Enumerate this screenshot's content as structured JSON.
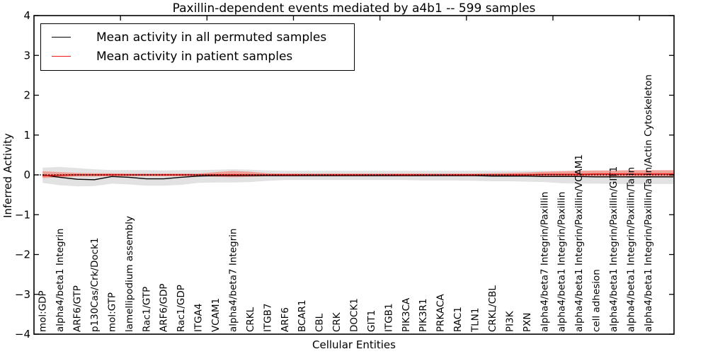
{
  "figure": {
    "title": "Paxillin-dependent events mediated by a4b1 -- 599 samples"
  },
  "chart_data": {
    "type": "line",
    "title": "Paxillin-dependent events mediated by a4b1 -- 599 samples",
    "xlabel": "Cellular Entities",
    "ylabel": "Inferred Activity",
    "ylim": [
      -4,
      4
    ],
    "yticks": [
      "4",
      "3",
      "2",
      "1",
      "0",
      "−1",
      "−2",
      "−3",
      "−4"
    ],
    "grid": false,
    "legend_position": "upper left",
    "legend": [
      {
        "label": "Mean activity in all permuted samples",
        "color": "#000000"
      },
      {
        "label": "Mean activity in patient samples",
        "color": "#ed1515"
      }
    ],
    "zero_line": {
      "y": 0,
      "style": "dotted",
      "color": "#000000"
    },
    "categories": [
      "mol:GDP",
      "alpha4/beta1 Integrin",
      "ARF6/GTP",
      "p130Cas/Crk/Dock1",
      "mol:GTP",
      "lamellipodium assembly",
      "Rac1/GTP",
      "ARF6/GDP",
      "Rac1/GDP",
      "ITGA4",
      "VCAM1",
      "alpha4/beta7 Integrin",
      "CRKL",
      "ITGB7",
      "ARF6",
      "BCAR1",
      "CBL",
      "CRK",
      "DOCK1",
      "GIT1",
      "ITGB1",
      "PIK3CA",
      "PIK3R1",
      "PRKACA",
      "RAC1",
      "TLN1",
      "CRKL/CBL",
      "PI3K",
      "PXN",
      "alpha4/beta7 Integrin/Paxillin",
      "alpha4/beta1 Integrin/Paxillin",
      "alpha4/beta1 Integrin/Paxillin/VCAM1",
      "cell adhesion",
      "alpha4/beta1 Integrin/Paxillin/GIT1",
      "alpha4/beta1 Integrin/Paxillin/Talin",
      "alpha4/beta1 Integrin/Paxillin/Talin/Actin Cytoskeleton"
    ],
    "series": [
      {
        "name": "Mean activity in all permuted samples",
        "color": "#000000",
        "line_width": 1.4,
        "band_color": "#e2e2e2",
        "values": [
          0.0,
          -0.06,
          -0.11,
          -0.12,
          -0.04,
          -0.06,
          -0.1,
          -0.1,
          -0.06,
          -0.03,
          -0.02,
          -0.02,
          -0.02,
          -0.02,
          -0.02,
          -0.02,
          -0.02,
          -0.02,
          -0.02,
          -0.02,
          -0.02,
          -0.02,
          -0.02,
          -0.02,
          -0.02,
          -0.02,
          -0.03,
          -0.03,
          -0.03,
          -0.04,
          -0.04,
          -0.04,
          -0.05,
          -0.05,
          -0.05,
          -0.05
        ],
        "band_upper": [
          0.18,
          0.2,
          0.17,
          0.14,
          0.12,
          0.12,
          0.12,
          0.11,
          0.12,
          0.12,
          0.13,
          0.14,
          0.13,
          0.11,
          0.1,
          0.1,
          0.1,
          0.1,
          0.1,
          0.1,
          0.1,
          0.1,
          0.1,
          0.1,
          0.1,
          0.1,
          0.1,
          0.1,
          0.1,
          0.1,
          0.1,
          0.11,
          0.11,
          0.11,
          0.11,
          0.11
        ],
        "band_lower": [
          -0.2,
          -0.26,
          -0.29,
          -0.28,
          -0.22,
          -0.24,
          -0.27,
          -0.27,
          -0.25,
          -0.2,
          -0.19,
          -0.19,
          -0.18,
          -0.15,
          -0.13,
          -0.13,
          -0.13,
          -0.13,
          -0.13,
          -0.13,
          -0.13,
          -0.13,
          -0.14,
          -0.14,
          -0.14,
          -0.15,
          -0.16,
          -0.16,
          -0.17,
          -0.18,
          -0.21,
          -0.22,
          -0.22,
          -0.23,
          -0.23,
          -0.23
        ]
      },
      {
        "name": "Mean activity in patient samples",
        "color": "#ed1515",
        "line_width": 1.6,
        "band_color": "rgba(255,65,45,0.40)",
        "values": [
          -0.02,
          -0.01,
          0,
          0,
          0,
          0,
          0,
          0,
          0,
          0,
          0,
          0,
          0,
          0,
          0,
          0,
          0,
          0,
          0,
          0,
          0,
          0,
          0,
          0,
          0,
          0,
          0,
          0,
          0,
          0.01,
          0.01,
          0.01,
          0.02,
          0.02,
          0.02,
          0.02
        ],
        "band_upper": [
          0.09,
          0.07,
          0.05,
          0.04,
          0.04,
          0.03,
          0.03,
          0.03,
          0.03,
          0.03,
          0.07,
          0.1,
          0.08,
          0.04,
          0.03,
          0.03,
          0.03,
          0.03,
          0.03,
          0.03,
          0.03,
          0.03,
          0.03,
          0.03,
          0.03,
          0.03,
          0.04,
          0.05,
          0.06,
          0.08,
          0.09,
          0.1,
          0.11,
          0.11,
          0.12,
          0.12
        ],
        "band_lower": [
          -0.08,
          -0.06,
          -0.04,
          -0.04,
          -0.03,
          -0.03,
          -0.03,
          -0.03,
          -0.03,
          -0.03,
          -0.05,
          -0.06,
          -0.05,
          -0.03,
          -0.03,
          -0.03,
          -0.03,
          -0.03,
          -0.03,
          -0.03,
          -0.03,
          -0.03,
          -0.03,
          -0.03,
          -0.03,
          -0.03,
          -0.03,
          -0.03,
          -0.03,
          -0.04,
          -0.04,
          -0.04,
          -0.05,
          -0.05,
          -0.05,
          -0.05
        ],
        "core_half_width": 0.025
      }
    ]
  }
}
